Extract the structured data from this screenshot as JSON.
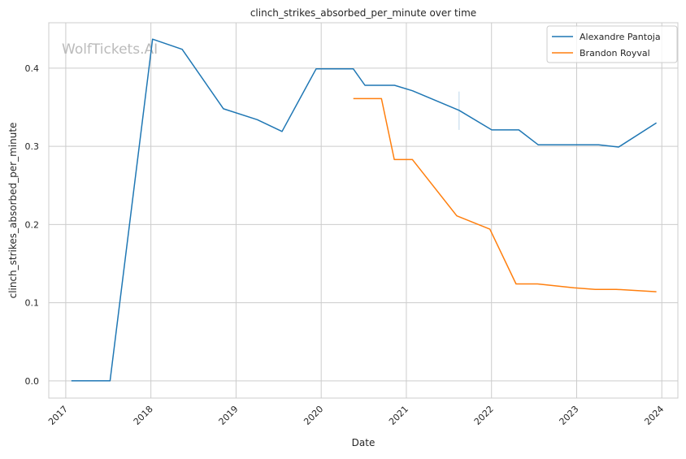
{
  "chart_data": {
    "type": "line",
    "title": "clinch_strikes_absorbed_per_minute over time",
    "xlabel": "Date",
    "ylabel": "clinch_strikes_absorbed_per_minute",
    "xlim": [
      "2016-10-20",
      "2024-03-10"
    ],
    "ylim": [
      -0.022,
      0.458
    ],
    "x_ticks": [
      "2017",
      "2018",
      "2019",
      "2020",
      "2021",
      "2022",
      "2023",
      "2024"
    ],
    "y_ticks": [
      "0.0",
      "0.1",
      "0.2",
      "0.3",
      "0.4"
    ],
    "grid": true,
    "legend_position": "top-right",
    "watermark": "WolfTickets.AI",
    "series": [
      {
        "name": "Alexandre Pantoja",
        "color": "#1f77b4",
        "points": [
          [
            "2017-01-25",
            0.0
          ],
          [
            "2017-07-10",
            0.0
          ],
          [
            "2018-01-08",
            0.437
          ],
          [
            "2018-05-15",
            0.424
          ],
          [
            "2018-11-08",
            0.348
          ],
          [
            "2019-04-02",
            0.334
          ],
          [
            "2019-07-17",
            0.319
          ],
          [
            "2019-12-10",
            0.399
          ],
          [
            "2020-05-18",
            0.399
          ],
          [
            "2020-07-07",
            0.378
          ],
          [
            "2020-11-11",
            0.378
          ],
          [
            "2021-01-27",
            0.371
          ],
          [
            "2021-08-15",
            0.346
          ],
          [
            "2022-01-02",
            0.321
          ],
          [
            "2022-04-28",
            0.321
          ],
          [
            "2022-07-20",
            0.302
          ],
          [
            "2023-04-05",
            0.302
          ],
          [
            "2023-06-30",
            0.299
          ],
          [
            "2023-12-09",
            0.33
          ]
        ],
        "error_bar": {
          "x": "2021-08-15",
          "low": 0.321,
          "high": 0.37
        }
      },
      {
        "name": "Brandon Royval",
        "color": "#ff7f0e",
        "points": [
          [
            "2020-05-18",
            0.361
          ],
          [
            "2020-09-16",
            0.361
          ],
          [
            "2020-11-10",
            0.283
          ],
          [
            "2021-01-27",
            0.283
          ],
          [
            "2021-08-05",
            0.211
          ],
          [
            "2021-12-25",
            0.194
          ],
          [
            "2022-04-16",
            0.124
          ],
          [
            "2022-07-17",
            0.124
          ],
          [
            "2022-12-20",
            0.119
          ],
          [
            "2023-03-22",
            0.117
          ],
          [
            "2023-06-19",
            0.117
          ],
          [
            "2023-12-09",
            0.114
          ]
        ]
      }
    ]
  }
}
